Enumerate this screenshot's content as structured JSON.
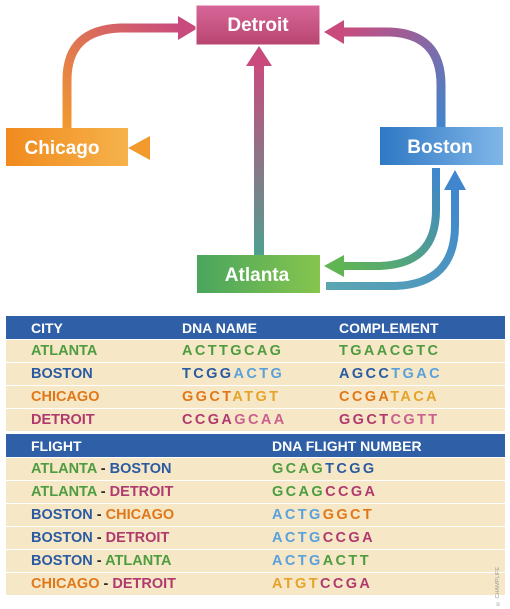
{
  "cities": {
    "detroit": "Detroit",
    "chicago": "Chicago",
    "boston": "Boston",
    "atlanta": "Atlanta"
  },
  "colors": {
    "detroit": "#c94b7d",
    "chicago": "#f29a2e",
    "boston": "#4c8fd0",
    "atlanta": "#5fb552",
    "header": "#2f5fa6",
    "row": "#f6e7c6"
  },
  "city_table": {
    "headers": [
      "CITY",
      "DNA NAME",
      "COMPLEMENT"
    ],
    "rows": [
      {
        "city": "ATLANTA",
        "city_color": "#4e9c3f",
        "dna": [
          {
            "t": "ACTT",
            "c": "#4e9c3f"
          },
          {
            "t": "GCAG",
            "c": "#4e9c3f"
          }
        ],
        "comp": [
          {
            "t": "TGAA",
            "c": "#4e9c3f"
          },
          {
            "t": "CGTC",
            "c": "#4e9c3f"
          }
        ]
      },
      {
        "city": "BOSTON",
        "city_color": "#2a5aa2",
        "dna": [
          {
            "t": "TCGG",
            "c": "#2a5aa2"
          },
          {
            "t": "ACTG",
            "c": "#5aa0dc"
          }
        ],
        "comp": [
          {
            "t": "AGCC",
            "c": "#2a5aa2"
          },
          {
            "t": "TGAC",
            "c": "#5aa0dc"
          }
        ]
      },
      {
        "city": "CHICAGO",
        "city_color": "#e0781a",
        "dna": [
          {
            "t": "GGCT",
            "c": "#e0781a"
          },
          {
            "t": "ATGT",
            "c": "#e6a32a"
          }
        ],
        "comp": [
          {
            "t": "CCGA",
            "c": "#e0781a"
          },
          {
            "t": "TACA",
            "c": "#e6a32a"
          }
        ]
      },
      {
        "city": "DETROIT",
        "city_color": "#b03a6e",
        "dna": [
          {
            "t": "CCGA",
            "c": "#b03a6e"
          },
          {
            "t": "GCAA",
            "c": "#c9608e"
          }
        ],
        "comp": [
          {
            "t": "GGCT",
            "c": "#b03a6e"
          },
          {
            "t": "CGTT",
            "c": "#c9608e"
          }
        ]
      }
    ]
  },
  "flight_table": {
    "headers": [
      "FLIGHT",
      "DNA FLIGHT NUMBER"
    ],
    "rows": [
      {
        "from": "ATLANTA",
        "from_color": "#4e9c3f",
        "sep": " - ",
        "to": "BOSTON",
        "to_color": "#2a5aa2",
        "num": [
          {
            "t": "GCAG",
            "c": "#4e9c3f"
          },
          {
            "t": "TCGG",
            "c": "#2a5aa2"
          }
        ]
      },
      {
        "from": "ATLANTA",
        "from_color": "#4e9c3f",
        "sep": " - ",
        "to": "DETROIT",
        "to_color": "#b03a6e",
        "num": [
          {
            "t": "GCAG",
            "c": "#4e9c3f"
          },
          {
            "t": "CCGA",
            "c": "#b03a6e"
          }
        ]
      },
      {
        "from": "BOSTON",
        "from_color": "#2a5aa2",
        "sep": " - ",
        "to": "CHICAGO",
        "to_color": "#e0781a",
        "num": [
          {
            "t": "ACTG",
            "c": "#5aa0dc"
          },
          {
            "t": "GGCT",
            "c": "#e0781a"
          }
        ]
      },
      {
        "from": "BOSTON",
        "from_color": "#2a5aa2",
        "sep": " - ",
        "to": "DETROIT",
        "to_color": "#b03a6e",
        "num": [
          {
            "t": "ACTG",
            "c": "#5aa0dc"
          },
          {
            "t": "CCGA",
            "c": "#b03a6e"
          }
        ]
      },
      {
        "from": "BOSTON",
        "from_color": "#2a5aa2",
        "sep": " - ",
        "to": "ATLANTA",
        "to_color": "#4e9c3f",
        "num": [
          {
            "t": "ACTG",
            "c": "#5aa0dc"
          },
          {
            "t": "ACTT",
            "c": "#4e9c3f"
          }
        ]
      },
      {
        "from": "CHICAGO",
        "from_color": "#e0781a",
        "sep": " - ",
        "to": "DETROIT",
        "to_color": "#b03a6e",
        "num": [
          {
            "t": "ATGT",
            "c": "#e6a32a"
          },
          {
            "t": "CCGA",
            "c": "#b03a6e"
          }
        ]
      }
    ]
  },
  "credit": "© CHAMPLIFE"
}
